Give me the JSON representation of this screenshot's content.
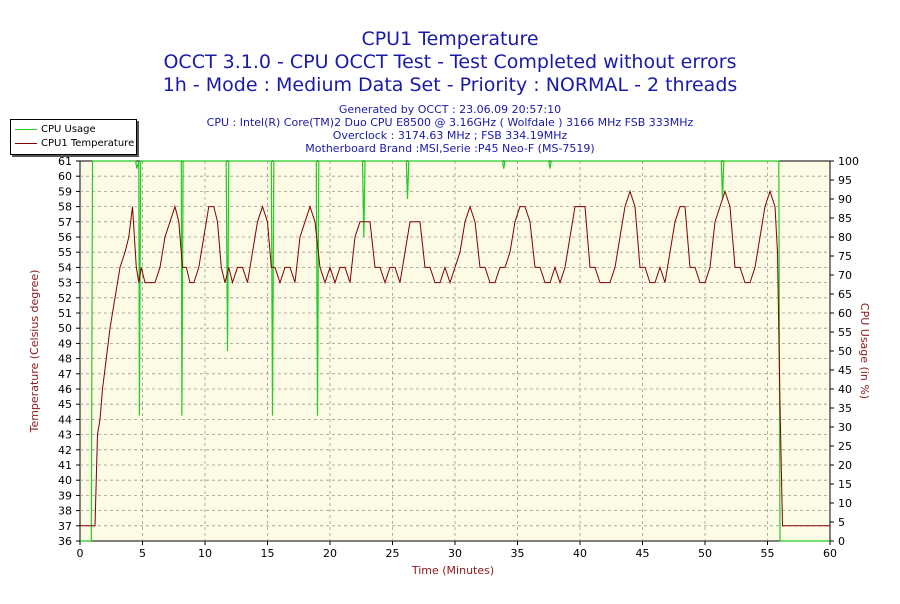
{
  "header": {
    "title_lines": [
      "CPU1 Temperature",
      "OCCT 3.1.0 - CPU OCCT Test - Test Completed without errors",
      "1h - Mode : Medium Data Set - Priority : NORMAL - 2 threads"
    ],
    "info_lines": [
      "Generated by OCCT : 23.06.09 20:57:10",
      "CPU : Intel(R) Core(TM)2 Duo CPU E8500 @ 3.16GHz ( Wolfdale ) 3166 MHz FSB 333MHz",
      "Overclock : 3174.63 MHz ; FSB 334.19MHz",
      "Motherboard Brand :MSI,Serie :P45 Neo-F (MS-7519)"
    ]
  },
  "legend": {
    "items": [
      {
        "label": "CPU Usage",
        "color": "#22cc22"
      },
      {
        "label": "CPU1 Temperature",
        "color": "#800000"
      }
    ]
  },
  "colors": {
    "title": "#1a1aa8",
    "plot_bg": "#fdfbe6",
    "temperature": "#800000",
    "usage": "#22cc22",
    "axis_label": "#8b1a1a"
  },
  "chart_data": {
    "type": "line",
    "xlabel": "Time (Minutes)",
    "ylabel": "Temperature (Celsius degree)",
    "y2label": "CPU Usage (in %)",
    "xlim": [
      0,
      60
    ],
    "ylim": [
      36,
      61
    ],
    "y2lim": [
      0,
      100
    ],
    "x_ticks": [
      0,
      5,
      10,
      15,
      20,
      25,
      30,
      35,
      40,
      45,
      50,
      55,
      60
    ],
    "y_ticks": [
      36,
      37,
      38,
      39,
      40,
      41,
      42,
      43,
      44,
      45,
      46,
      47,
      48,
      49,
      50,
      51,
      52,
      53,
      54,
      55,
      56,
      57,
      58,
      59,
      60,
      61
    ],
    "y2_ticks": [
      0,
      5,
      10,
      15,
      20,
      25,
      30,
      35,
      40,
      45,
      50,
      55,
      60,
      65,
      70,
      75,
      80,
      85,
      90,
      95,
      100
    ],
    "grid": true,
    "legend_position": "top-left",
    "series": [
      {
        "name": "CPU1 Temperature",
        "axis": "left",
        "x": [
          0,
          1,
          1.2,
          1.4,
          1.6,
          1.8,
          2.1,
          2.4,
          2.8,
          3.2,
          3.6,
          3.9,
          4.2,
          4.5,
          4.7,
          4.9,
          5.2,
          5.6,
          6.0,
          6.4,
          6.8,
          7.2,
          7.6,
          7.9,
          8.2,
          8.5,
          8.8,
          9.1,
          9.5,
          9.9,
          10.3,
          10.7,
          11.0,
          11.3,
          11.6,
          11.9,
          12.2,
          12.6,
          13.0,
          13.4,
          13.8,
          14.2,
          14.6,
          15.0,
          15.3,
          15.6,
          16.0,
          16.4,
          16.8,
          17.2,
          17.6,
          18.0,
          18.4,
          18.8,
          19.2,
          19.6,
          20.0,
          20.4,
          20.8,
          21.2,
          21.6,
          22.0,
          22.4,
          22.8,
          23.2,
          23.6,
          24.0,
          24.4,
          24.8,
          25.2,
          25.6,
          26.0,
          26.4,
          26.8,
          27.2,
          27.6,
          28.0,
          28.4,
          28.8,
          29.2,
          29.6,
          30.0,
          30.4,
          30.8,
          31.2,
          31.6,
          32.0,
          32.4,
          32.8,
          33.2,
          33.6,
          34.0,
          34.4,
          34.8,
          35.2,
          35.6,
          36.0,
          36.4,
          36.8,
          37.2,
          37.6,
          38.0,
          38.4,
          38.8,
          39.2,
          39.6,
          40.0,
          40.4,
          40.8,
          41.2,
          41.6,
          42.0,
          42.4,
          42.8,
          43.2,
          43.6,
          44.0,
          44.4,
          44.8,
          45.2,
          45.6,
          46.0,
          46.4,
          46.8,
          47.2,
          47.6,
          48.0,
          48.4,
          48.8,
          49.2,
          49.6,
          50.0,
          50.4,
          50.8,
          51.2,
          51.6,
          52.0,
          52.4,
          52.8,
          53.2,
          53.6,
          54.0,
          54.4,
          54.8,
          55.2,
          55.6,
          55.8,
          56.0,
          56.2,
          57,
          58,
          59,
          60
        ],
        "y": [
          37,
          37,
          37,
          43,
          44,
          46,
          48,
          50,
          52,
          54,
          55,
          56,
          58,
          54,
          53,
          54,
          53,
          53,
          53,
          54,
          56,
          57,
          58,
          57,
          54,
          54,
          53,
          53,
          54,
          56,
          58,
          58,
          57,
          54,
          53,
          54,
          53,
          54,
          54,
          53,
          55,
          57,
          58,
          57,
          54,
          54,
          53,
          54,
          54,
          53,
          56,
          57,
          58,
          57,
          54,
          53,
          54,
          53,
          54,
          54,
          53,
          56,
          57,
          57,
          57,
          54,
          54,
          53,
          54,
          54,
          53,
          55,
          57,
          57,
          57,
          54,
          54,
          53,
          53,
          54,
          53,
          54,
          55,
          57,
          58,
          57,
          54,
          54,
          53,
          53,
          54,
          54,
          55,
          57,
          58,
          58,
          57,
          54,
          54,
          53,
          53,
          54,
          53,
          54,
          56,
          58,
          58,
          58,
          54,
          54,
          53,
          53,
          53,
          54,
          56,
          58,
          59,
          58,
          54,
          54,
          53,
          53,
          54,
          53,
          55,
          57,
          58,
          58,
          54,
          54,
          53,
          53,
          54,
          57,
          58,
          59,
          58,
          54,
          54,
          53,
          53,
          54,
          56,
          58,
          59,
          58,
          55,
          45,
          37,
          37,
          37,
          37,
          37
        ]
      },
      {
        "name": "CPU Usage",
        "axis": "right",
        "x": [
          0,
          0.9,
          1.0,
          1.1,
          4.3,
          4.45,
          4.55,
          4.7,
          4.75,
          4.85,
          8.1,
          8.15,
          8.25,
          8.35,
          11.7,
          11.8,
          11.9,
          12.0,
          15.3,
          15.4,
          15.5,
          15.6,
          18.9,
          19.0,
          19.1,
          19.2,
          22.6,
          22.7,
          22.8,
          26.1,
          26.2,
          26.3,
          26.4,
          33.8,
          33.9,
          34.0,
          37.5,
          37.6,
          37.7,
          51.3,
          51.4,
          51.5,
          55.9,
          56.0,
          56.1,
          60
        ],
        "y": [
          0,
          0,
          100,
          100,
          100,
          100,
          98,
          100,
          33,
          100,
          100,
          33,
          100,
          100,
          100,
          50,
          100,
          100,
          100,
          33,
          100,
          100,
          100,
          33,
          100,
          100,
          100,
          80,
          100,
          100,
          90,
          100,
          100,
          100,
          98,
          100,
          100,
          98,
          100,
          100,
          90,
          100,
          100,
          0,
          0,
          0
        ]
      }
    ]
  }
}
